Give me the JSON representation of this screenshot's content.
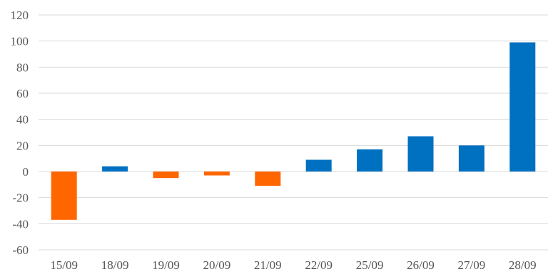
{
  "chart_data": {
    "type": "bar",
    "title": "",
    "xlabel": "",
    "ylabel": "",
    "categories": [
      "15/09",
      "18/09",
      "19/09",
      "20/09",
      "21/09",
      "22/09",
      "25/09",
      "26/09",
      "27/09",
      "28/09"
    ],
    "values": [
      -37,
      4,
      -5,
      -3,
      -11,
      9,
      17,
      27,
      20,
      99
    ],
    "ylim": [
      -60,
      120
    ],
    "yticks": [
      "120",
      "100",
      "80",
      "60",
      "40",
      "20",
      "0",
      "-20",
      "-40",
      "-60"
    ],
    "grid": true,
    "legend": "none",
    "colors": {
      "positive": "#0070C0",
      "negative": "#FF6600"
    }
  }
}
